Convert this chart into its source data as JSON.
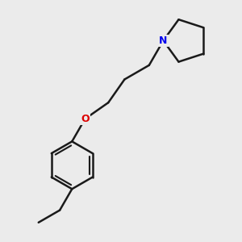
{
  "background_color": "#ebebeb",
  "bond_color": "#1a1a1a",
  "N_color": "#0000ee",
  "O_color": "#dd0000",
  "bond_width": 1.8,
  "font_size_N": 9,
  "font_size_O": 9
}
